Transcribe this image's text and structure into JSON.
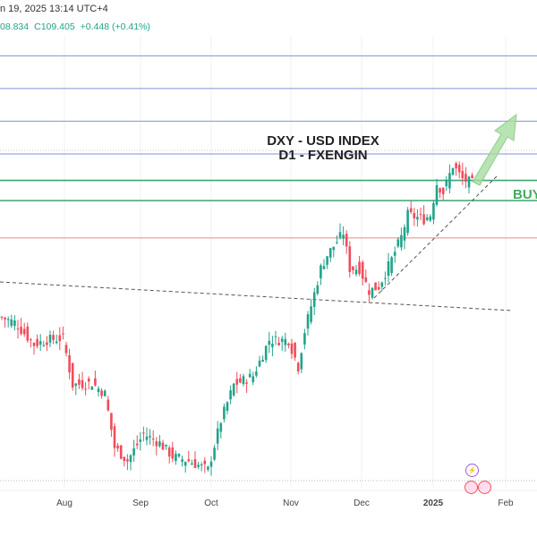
{
  "header": {
    "datetime": "n 19, 2025 13:14 UTC+4",
    "low": "08.834",
    "close": "C109.405",
    "change": "+0.448 (+0.41%)"
  },
  "annotations": {
    "title": "DXY - USD INDEX",
    "subtitle": "D1 - FXENGIN",
    "buy": "BUY"
  },
  "colors": {
    "up": "#22a38a",
    "down": "#ef4d5a",
    "blue_line": "#7d95d8",
    "green_line": "#3aa675",
    "red_line": "#e58a8a",
    "arrow": "#a6dca0"
  },
  "chart_data": {
    "type": "candlestick",
    "title": "DXY - USD INDEX D1",
    "x_labels": [
      "Aug",
      "Sep",
      "Oct",
      "Nov",
      "Dec",
      "2025",
      "Feb"
    ],
    "ylim": [
      99.5,
      115.4
    ],
    "waypoints": [
      [
        0,
        105.09
      ],
      [
        4,
        104.94
      ],
      [
        10,
        104.23
      ],
      [
        14,
        104.37
      ],
      [
        19,
        104.43
      ],
      [
        22,
        102.93
      ],
      [
        28,
        102.99
      ],
      [
        32,
        102.64
      ],
      [
        35,
        100.92
      ],
      [
        39,
        100.49
      ],
      [
        44,
        101.35
      ],
      [
        49,
        101.06
      ],
      [
        53,
        100.63
      ],
      [
        58,
        100.49
      ],
      [
        64,
        100.2
      ],
      [
        68,
        101.78
      ],
      [
        72,
        102.93
      ],
      [
        78,
        103.22
      ],
      [
        83,
        104.37
      ],
      [
        89,
        104.37
      ],
      [
        92,
        103.51
      ],
      [
        94,
        104.66
      ],
      [
        99,
        106.67
      ],
      [
        101,
        107.1
      ],
      [
        106,
        107.82
      ],
      [
        108,
        106.67
      ],
      [
        111,
        106.67
      ],
      [
        114,
        105.95
      ],
      [
        117,
        106.09
      ],
      [
        121,
        106.96
      ],
      [
        124,
        107.68
      ],
      [
        126,
        108.39
      ],
      [
        131,
        108.25
      ],
      [
        133,
        108.39
      ],
      [
        135,
        109.4
      ],
      [
        137,
        109.11
      ],
      [
        140,
        109.98
      ],
      [
        143,
        109.54
      ],
      [
        146,
        109.405
      ]
    ],
    "levels": [
      {
        "price": 113.5,
        "kind": "resistance"
      },
      {
        "price": 112.45,
        "kind": "resistance"
      },
      {
        "price": 111.4,
        "kind": "resistance"
      },
      {
        "price": 110.35,
        "kind": "resistance"
      },
      {
        "price": 109.5,
        "kind": "support"
      },
      {
        "price": 108.85,
        "kind": "buy-zone"
      },
      {
        "price": 107.65,
        "kind": "stop"
      }
    ]
  }
}
